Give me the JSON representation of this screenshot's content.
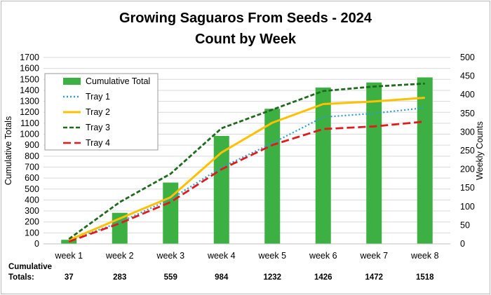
{
  "chart_data": {
    "type": "bar+line",
    "title": "Growing Saguaros From Seeds - 2024",
    "subtitle": "Count by Week",
    "categories": [
      "week 1",
      "week 2",
      "week 3",
      "week 4",
      "week 5",
      "week 6",
      "week 7",
      "week 8"
    ],
    "ylabel": "Cumulative Totals",
    "y2label": "Weekly Counts",
    "ylim": [
      0,
      1700
    ],
    "y2lim": [
      0,
      500
    ],
    "yticks": [
      "0",
      "100",
      "200",
      "300",
      "400",
      "500",
      "600",
      "700",
      "800",
      "900",
      "1000",
      "1100",
      "1200",
      "1300",
      "1400",
      "1500",
      "1600",
      "1700"
    ],
    "y2ticks": [
      "0",
      "50",
      "100",
      "150",
      "200",
      "250",
      "300",
      "350",
      "400",
      "450",
      "500"
    ],
    "grid": true,
    "legend_position": "top-left",
    "bar_series": {
      "name": "Cumulative Total",
      "axis": "left",
      "color": "#3cb043",
      "values": [
        37,
        283,
        559,
        984,
        1232,
        1426,
        1472,
        1518
      ]
    },
    "series": [
      {
        "name": "Tray 1",
        "axis": "right",
        "color": "#2e9bd6",
        "style": "dotted",
        "values": [
          8,
          58,
          120,
          205,
          270,
          340,
          350,
          365
        ]
      },
      {
        "name": "Tray 2",
        "axis": "right",
        "color": "#ffc000",
        "style": "solid",
        "values": [
          10,
          68,
          125,
          245,
          325,
          375,
          382,
          392
        ]
      },
      {
        "name": "Tray 3",
        "axis": "right",
        "color": "#1e6b1e",
        "style": "dashed",
        "values": [
          13,
          112,
          188,
          310,
          360,
          410,
          422,
          430
        ]
      },
      {
        "name": "Tray 4",
        "axis": "right",
        "color": "#e31a1c",
        "style": "longdash",
        "values": [
          6,
          55,
          112,
          200,
          265,
          308,
          315,
          328
        ]
      }
    ],
    "totals_label_line1": "Cumulative",
    "totals_label_line2": "Totals:",
    "totals": [
      "37",
      "283",
      "559",
      "984",
      "1232",
      "1426",
      "1472",
      "1518"
    ]
  }
}
